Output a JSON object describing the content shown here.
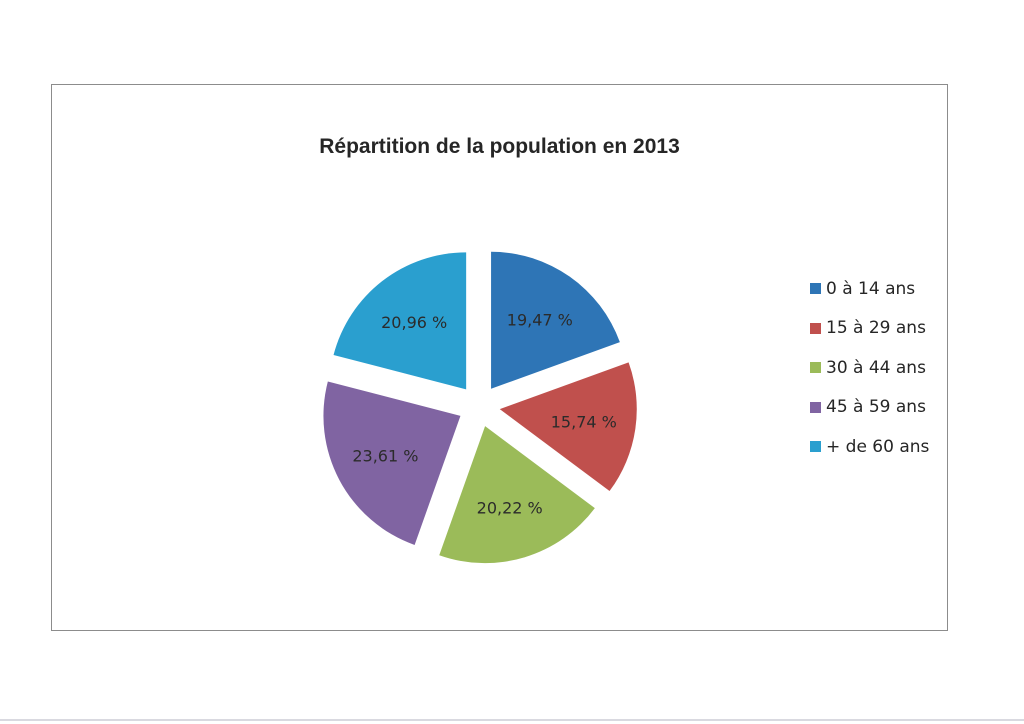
{
  "chart_data": {
    "type": "pie",
    "title": "Répartition de la population en 2013",
    "categories": [
      "0 à 14 ans",
      "15 à 29 ans",
      "30 à 44 ans",
      "45 à 59 ans",
      "+ de 60 ans"
    ],
    "values": [
      19.47,
      15.74,
      20.22,
      23.61,
      20.96
    ],
    "labels": [
      "19,47 %",
      "15,74 %",
      "20,22 %",
      "23,61 %",
      "20,96 %"
    ],
    "colors": [
      "#2e75b6",
      "#c0504d",
      "#9bbb59",
      "#8064a2",
      "#2a9fcf"
    ],
    "legend_position": "right",
    "exploded": true
  }
}
